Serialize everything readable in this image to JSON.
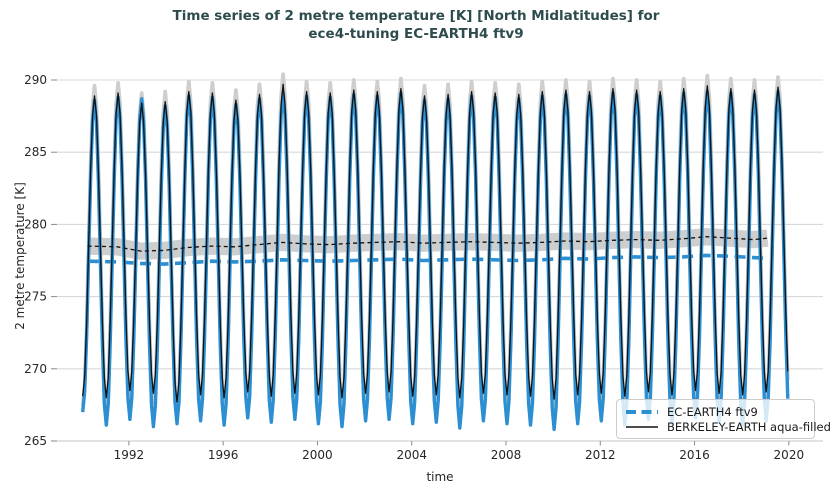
{
  "title": {
    "line1": "Time series of 2 metre temperature [K] [North Midlatitudes] for",
    "line2": "ece4-tuning EC-EARTH4 ftv9"
  },
  "axes": {
    "xlabel": "time",
    "ylabel": "2 metre temperature [K]",
    "yticks": [
      265,
      270,
      275,
      280,
      285,
      290
    ],
    "xticks": [
      1992,
      1996,
      2000,
      2004,
      2008,
      2012,
      2016,
      2020
    ]
  },
  "colors": {
    "model_blue": "#2b8fd2",
    "obs_black": "#111111",
    "uncertainty_gray": "#cecece",
    "grid_gray": "#d9d9d9",
    "axis_line": "#c6c6c6",
    "tick_mark": "#8a8a8a",
    "title_teal": "#2e4c4e",
    "tick_text": "#262626"
  },
  "legend": {
    "items": [
      {
        "label": "EC-EARTH4 ftv9",
        "style": "dashed-thick-blue"
      },
      {
        "label": "BERKELEY-EARTH aqua-filled",
        "style": "solid-thin-black"
      }
    ]
  },
  "chart_data": {
    "type": "line",
    "title": "Time series of 2 metre temperature [K] [North Midlatitudes] for ece4-tuning EC-EARTH4 ftv9",
    "xlabel": "time",
    "ylabel": "2 metre temperature [K]",
    "xlim": [
      1988.95,
      2021.45
    ],
    "ylim": [
      265,
      290
    ],
    "grid": "horizontal",
    "legend_position": "lower right",
    "years": [
      1990,
      1991,
      1992,
      1993,
      1994,
      1995,
      1996,
      1997,
      1998,
      1999,
      2000,
      2001,
      2002,
      2003,
      2004,
      2005,
      2006,
      2007,
      2008,
      2009,
      2010,
      2011,
      2012,
      2013,
      2014,
      2015,
      2016,
      2017,
      2018,
      2019
    ],
    "series": [
      {
        "name": "EC-EARTH4 ftv9",
        "role": "model-monthly",
        "color": "#2b8fd2",
        "summer_peaks": [
          288.6,
          288.8,
          288.7,
          288.2,
          288.9,
          288.8,
          288.3,
          288.7,
          289.1,
          288.9,
          288.8,
          289.0,
          288.9,
          289.1,
          288.6,
          288.7,
          288.9,
          288.8,
          288.7,
          288.9,
          289.0,
          288.9,
          289.1,
          289.0,
          288.9,
          289.1,
          289.2,
          289.1,
          289.0,
          289.2
        ],
        "winter_troughs": [
          267.0,
          266.1,
          266.5,
          266.0,
          266.2,
          266.4,
          266.1,
          266.6,
          266.3,
          266.5,
          266.2,
          266.0,
          266.4,
          266.5,
          266.2,
          266.3,
          265.9,
          266.4,
          266.2,
          266.1,
          265.8,
          266.2,
          266.4,
          266.1,
          266.5,
          266.2,
          266.6,
          266.3,
          266.1,
          266.4
        ],
        "annual_mean": [
          277.45,
          277.4,
          277.3,
          277.25,
          277.35,
          277.45,
          277.4,
          277.45,
          277.55,
          277.5,
          277.45,
          277.5,
          277.55,
          277.6,
          277.5,
          277.55,
          277.6,
          277.55,
          277.5,
          277.55,
          277.65,
          277.6,
          277.7,
          277.75,
          277.7,
          277.75,
          277.85,
          277.8,
          277.7,
          277.65
        ]
      },
      {
        "name": "BERKELEY-EARTH aqua-filled",
        "role": "observations-monthly",
        "color": "#111111",
        "uncertainty_halfwidth_K": 0.7,
        "mean_band_halfwidth_K": 0.6,
        "summer_peaks": [
          288.9,
          289.1,
          288.4,
          288.5,
          289.2,
          289.1,
          288.6,
          289.0,
          289.7,
          289.2,
          289.1,
          289.3,
          289.2,
          289.4,
          288.9,
          289.0,
          289.2,
          289.1,
          289.0,
          289.2,
          289.3,
          289.2,
          289.4,
          289.3,
          289.2,
          289.4,
          289.6,
          289.4,
          289.3,
          289.5
        ],
        "winter_troughs": [
          268.1,
          268.0,
          268.5,
          268.3,
          267.7,
          268.2,
          268.0,
          268.4,
          268.1,
          268.3,
          268.2,
          268.0,
          268.3,
          268.4,
          268.1,
          268.2,
          268.0,
          268.3,
          268.2,
          268.1,
          267.9,
          268.2,
          268.3,
          268.1,
          268.4,
          268.2,
          268.5,
          268.3,
          268.2,
          268.4
        ],
        "annual_mean": [
          278.5,
          278.45,
          278.15,
          278.2,
          278.4,
          278.5,
          278.45,
          278.6,
          278.75,
          278.65,
          278.6,
          278.7,
          278.75,
          278.8,
          278.7,
          278.75,
          278.8,
          278.75,
          278.7,
          278.75,
          278.85,
          278.8,
          278.9,
          278.95,
          278.9,
          279.0,
          279.15,
          279.05,
          278.95,
          279.05
        ]
      }
    ]
  }
}
